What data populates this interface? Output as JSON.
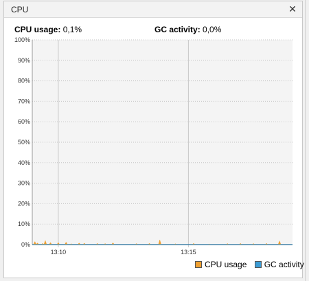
{
  "window": {
    "title": "CPU"
  },
  "stats": {
    "cpu_label": "CPU usage:",
    "cpu_value": "0,1%",
    "gc_label": "GC activity:",
    "gc_value": "0,0%"
  },
  "legend": {
    "cpu": "CPU usage",
    "gc": "GC activity"
  },
  "colors": {
    "cpu": "#f0a030",
    "gc": "#3a9bd4"
  },
  "chart_data": {
    "type": "area",
    "ylim": [
      0,
      100
    ],
    "y_ticks": [
      "0%",
      "10%",
      "20%",
      "30%",
      "40%",
      "50%",
      "60%",
      "70%",
      "80%",
      "90%",
      "100%"
    ],
    "x_ticks": [
      "13:10",
      "13:15"
    ],
    "x_range_minutes": [
      -1,
      9
    ],
    "grid": true,
    "legend_position": "bottom-right",
    "series": [
      {
        "name": "CPU usage",
        "x": [
          -0.9,
          -0.8,
          -0.6,
          -0.5,
          -0.3,
          0,
          0.3,
          0.5,
          0.8,
          1.0,
          1.5,
          1.8,
          2.1,
          3.0,
          3.5,
          3.9,
          4.5,
          5.2,
          5.8,
          6.5,
          7.0,
          7.5,
          8.0,
          8.5
        ],
        "values": [
          1.5,
          0.8,
          0.6,
          2.0,
          1.0,
          1.0,
          1.2,
          0.4,
          0.8,
          0.7,
          0.6,
          0.5,
          0.9,
          0.5,
          0.6,
          2.3,
          0.4,
          0.6,
          0.3,
          0.5,
          0.6,
          0.5,
          0.6,
          1.8
        ]
      },
      {
        "name": "GC activity",
        "x": [
          -1,
          9
        ],
        "values": [
          0,
          0
        ]
      }
    ]
  }
}
